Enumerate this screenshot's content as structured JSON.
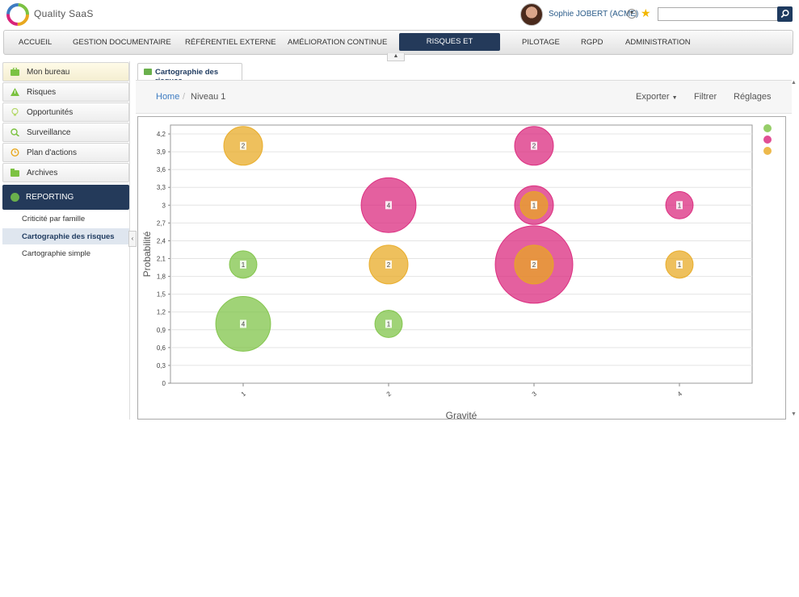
{
  "app": {
    "name": "Quality SaaS"
  },
  "user": {
    "name": "Sophie JOBERT (ACME)"
  },
  "search": {
    "placeholder": "",
    "value": ""
  },
  "nav": {
    "items": [
      "ACCUEIL",
      "GESTION DOCUMENTAIRE",
      "RÉFÉRENTIEL EXTERNE",
      "AMÉLIORATION CONTINUE",
      "RISQUES ET OPPORTUNITÉS",
      "PILOTAGE",
      "RGPD",
      "ADMINISTRATION"
    ],
    "active": "RISQUES ET OPPORTUNITÉS"
  },
  "sidebar": {
    "items": [
      {
        "label": "Mon bureau",
        "icon": "briefcase-icon"
      },
      {
        "label": "Risques",
        "icon": "warning-icon"
      },
      {
        "label": "Opportunités",
        "icon": "lightbulb-icon"
      },
      {
        "label": "Surveillance",
        "icon": "magnifier-icon"
      },
      {
        "label": "Plan d'actions",
        "icon": "clock-icon"
      },
      {
        "label": "Archives",
        "icon": "archive-icon"
      }
    ],
    "reporting": {
      "label": "REPORTING",
      "icon": "pie-chart-icon"
    },
    "sub_items": [
      {
        "label": "Criticité par famille"
      },
      {
        "label": "Cartographie des risques",
        "active": true
      },
      {
        "label": "Cartographie simple"
      }
    ]
  },
  "tab": {
    "label": "Cartographie des risques"
  },
  "breadcrumb": {
    "home": "Home",
    "current": "Niveau 1"
  },
  "toolbar": {
    "export": "Exporter",
    "filter": "Filtrer",
    "settings": "Réglages"
  },
  "colors": {
    "green": "#7cc242",
    "pink": "#d9237a",
    "orange": "#e8a81f",
    "navy": "#243a5a"
  },
  "chart_data": {
    "type": "bubble",
    "xlabel": "Gravité",
    "ylabel": "Probabilité",
    "xlim": [
      0.5,
      4.5
    ],
    "ylim": [
      0,
      4.35
    ],
    "xticks": [
      "1",
      "2",
      "3",
      "4"
    ],
    "yticks": [
      "0",
      "0,3",
      "0,6",
      "0,9",
      "1,2",
      "1,5",
      "1,8",
      "2,1",
      "2,4",
      "2,7",
      "3",
      "3,3",
      "3,6",
      "3,9",
      "4,2"
    ],
    "legend_position": "right",
    "series": [
      {
        "color": "#7cc242",
        "points": [
          {
            "x": 1,
            "y": 2,
            "size": 1
          },
          {
            "x": 1,
            "y": 1,
            "size": 4
          },
          {
            "x": 2,
            "y": 1,
            "size": 1
          }
        ]
      },
      {
        "color": "#d9237a",
        "points": [
          {
            "x": 2,
            "y": 3,
            "size": 4
          },
          {
            "x": 3,
            "y": 4,
            "size": 2
          },
          {
            "x": 3,
            "y": 3,
            "size": 2
          },
          {
            "x": 3,
            "y": 2,
            "size": 8
          },
          {
            "x": 4,
            "y": 3,
            "size": 1
          }
        ]
      },
      {
        "color": "#e8a81f",
        "points": [
          {
            "x": 1,
            "y": 4,
            "size": 2
          },
          {
            "x": 2,
            "y": 2,
            "size": 2
          },
          {
            "x": 3,
            "y": 3,
            "size": 1
          },
          {
            "x": 3,
            "y": 2,
            "size": 2
          },
          {
            "x": 4,
            "y": 2,
            "size": 1
          }
        ]
      }
    ]
  }
}
